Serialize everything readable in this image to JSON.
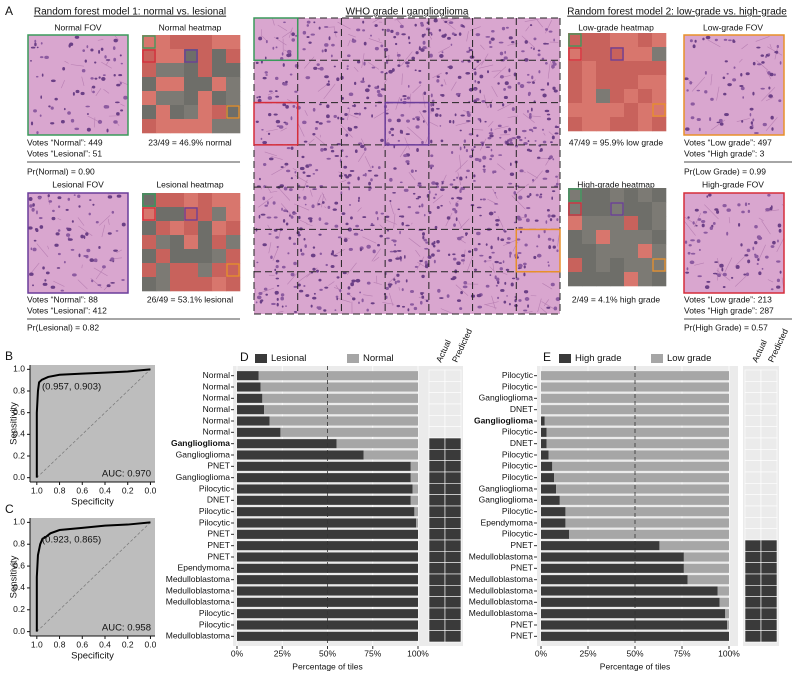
{
  "panel_a": {
    "label": "A",
    "model1": {
      "title": "Random forest model 1: normal vs. lesional",
      "normal": {
        "fov_title": "Normal FOV",
        "heatmap_title": "Normal heatmap",
        "votes": [
          "Votes “Normal”: 449",
          "Votes “Lesional”: 51"
        ],
        "tile_summary": "23/49 = 46.9% normal",
        "probability": "Pr(Normal) = 0.90"
      },
      "lesional": {
        "fov_title": "Lesional FOV",
        "heatmap_title": "Lesional heatmap",
        "votes": [
          "Votes “Normal”: 88",
          "Votes “Lesional”: 412"
        ],
        "tile_summary": "26/49 = 53.1% lesional",
        "probability": "Pr(Lesional) = 0.82"
      }
    },
    "center_title": "WHO grade I ganglioglioma",
    "model2": {
      "title": "Random forest model 2: low-grade vs. high-grade",
      "low": {
        "heatmap_title": "Low-grade heatmap",
        "fov_title": "Low-grade FOV",
        "tile_summary": "47/49 = 95.9% low grade",
        "votes": [
          "Votes “Low grade”: 497",
          "Votes “High grade”: 3"
        ],
        "probability": "Pr(Low Grade) = 0.99"
      },
      "high": {
        "heatmap_title": "High-grade heatmap",
        "fov_title": "High-grade FOV",
        "tile_summary": "2/49 = 4.1% high grade",
        "votes": [
          "Votes “Low grade”: 213",
          "Votes “High grade”: 287"
        ],
        "probability": "Pr(High Grade) = 0.57"
      }
    }
  },
  "chart_data": [
    {
      "type": "line",
      "panel_label": "B",
      "xlabel": "Specificity",
      "ylabel": "Sensitivity",
      "color": "#000000",
      "background": "#bdbdbd",
      "x": [
        1.0,
        1.0,
        0.99,
        0.98,
        0.96,
        0.957,
        0.9,
        0.8,
        0.6,
        0.4,
        0.2,
        0.0
      ],
      "values": [
        0,
        0.6,
        0.8,
        0.88,
        0.9,
        0.903,
        0.93,
        0.95,
        0.96,
        0.97,
        0.98,
        1.0
      ],
      "xlim": [
        1.06,
        -0.04
      ],
      "ylim": [
        -0.04,
        1.04
      ],
      "xticks": [
        {
          "value": 1,
          "label": "1.0"
        },
        0.8,
        0.6,
        0.4,
        0.2,
        {
          "value": 0,
          "label": "0.0"
        }
      ],
      "yticks": [
        {
          "value": 0,
          "label": "0.0"
        },
        0.2,
        0.4,
        0.6,
        0.8,
        {
          "value": 1,
          "label": "1.0"
        }
      ],
      "annotation": "(0.957, 0.903)",
      "auc_label": "AUC: 0.970"
    },
    {
      "type": "line",
      "panel_label": "C",
      "xlabel": "Specificity",
      "ylabel": "Sensitivity",
      "color": "#000000",
      "background": "#bdbdbd",
      "x": [
        1.0,
        1.0,
        0.99,
        0.97,
        0.95,
        0.923,
        0.88,
        0.8,
        0.6,
        0.4,
        0.2,
        0.0
      ],
      "values": [
        0,
        0.5,
        0.7,
        0.8,
        0.85,
        0.865,
        0.9,
        0.93,
        0.95,
        0.97,
        0.98,
        1.0
      ],
      "xlim": [
        1.06,
        -0.04
      ],
      "ylim": [
        -0.04,
        1.04
      ],
      "xticks": [
        {
          "value": 1,
          "label": "1.0"
        },
        0.8,
        0.6,
        0.4,
        0.2,
        {
          "value": 0,
          "label": "0.0"
        }
      ],
      "yticks": [
        {
          "value": 0,
          "label": "0.0"
        },
        0.2,
        0.4,
        0.6,
        0.8,
        {
          "value": 1,
          "label": "1.0"
        }
      ],
      "annotation": "(0.923, 0.865)",
      "auc_label": "AUC: 0.958"
    },
    {
      "type": "bar",
      "panel_label": "D",
      "orientation": "horizontal",
      "stacked": true,
      "legend": "top",
      "background": "#ebebeb",
      "categories": [
        "Normal",
        "Normal",
        "Normal",
        "Normal",
        "Normal",
        "Normal",
        "Ganglioglioma",
        "Ganglioglioma",
        "PNET",
        "Ganglioglioma",
        "Pilocytic",
        "DNET",
        "Pilocytic",
        "Pilocytic",
        "PNET",
        "PNET",
        "PNET",
        "Ependymoma",
        "Medulloblastoma",
        "Medulloblastoma",
        "Medulloblastoma",
        "Pilocytic",
        "Pilocytic",
        "Medulloblastoma"
      ],
      "bold_category": 6,
      "series": [
        {
          "name": "Lesional",
          "color": "#3a3a3a",
          "values": [
            12,
            13,
            14,
            15,
            18,
            24,
            55,
            70,
            96,
            96,
            97,
            96,
            98,
            99,
            100,
            100,
            100,
            100,
            100,
            100,
            100,
            100,
            100,
            100
          ]
        },
        {
          "name": "Normal",
          "color": "#a6a6a6",
          "values": [
            88,
            87,
            86,
            85,
            82,
            76,
            45,
            30,
            4,
            4,
            3,
            4,
            2,
            1,
            0,
            0,
            0,
            0,
            0,
            0,
            0,
            0,
            0,
            0
          ]
        }
      ],
      "xlim": [
        0,
        100
      ],
      "xticks": [
        {
          "value": 0,
          "label": "0%"
        },
        {
          "value": 25,
          "label": "25%"
        },
        {
          "value": 50,
          "label": "50%"
        },
        {
          "value": 75,
          "label": "75%"
        },
        {
          "value": 100,
          "label": "100%"
        }
      ],
      "vline": 50,
      "xlabel": "Percentage of tiles",
      "status_columns": [
        "Actual",
        "Predicted"
      ],
      "actual": [
        "Normal",
        "Normal",
        "Normal",
        "Normal",
        "Normal",
        "Normal",
        "Lesional",
        "Lesional",
        "Lesional",
        "Lesional",
        "Lesional",
        "Lesional",
        "Lesional",
        "Lesional",
        "Lesional",
        "Lesional",
        "Lesional",
        "Lesional",
        "Lesional",
        "Lesional",
        "Lesional",
        "Lesional",
        "Lesional",
        "Lesional"
      ],
      "predicted": [
        "Normal",
        "Normal",
        "Normal",
        "Normal",
        "Normal",
        "Normal",
        "Lesional",
        "Lesional",
        "Lesional",
        "Lesional",
        "Lesional",
        "Lesional",
        "Lesional",
        "Lesional",
        "Lesional",
        "Lesional",
        "Lesional",
        "Lesional",
        "Lesional",
        "Lesional",
        "Lesional",
        "Lesional",
        "Lesional",
        "Lesional"
      ]
    },
    {
      "type": "bar",
      "panel_label": "E",
      "orientation": "horizontal",
      "stacked": true,
      "legend": "top",
      "background": "#ebebeb",
      "categories": [
        "Pilocytic",
        "Pilocytic",
        "Ganglioglioma",
        "DNET",
        "Ganglioglioma",
        "Pilocytic",
        "DNET",
        "Pilocytic",
        "Pilocytic",
        "Pilocytic",
        "Ganglioglioma",
        "Ganglioglioma",
        "Pilocytic",
        "Ependymoma",
        "Pilocytic",
        "PNET",
        "Medulloblastoma",
        "PNET",
        "Medulloblastoma",
        "Medulloblastoma",
        "Medulloblastoma",
        "Medulloblastoma",
        "PNET",
        "PNET"
      ],
      "bold_category": 4,
      "series": [
        {
          "name": "High grade",
          "color": "#3a3a3a",
          "values": [
            0,
            0,
            0,
            0,
            2,
            3,
            3,
            4,
            6,
            7,
            8,
            10,
            13,
            13,
            15,
            63,
            76,
            76,
            78,
            94,
            95,
            98,
            99,
            100
          ]
        },
        {
          "name": "Low grade",
          "color": "#a6a6a6",
          "values": [
            100,
            100,
            100,
            100,
            98,
            97,
            97,
            96,
            94,
            93,
            92,
            90,
            87,
            87,
            85,
            37,
            24,
            24,
            22,
            6,
            5,
            2,
            1,
            0
          ]
        }
      ],
      "xlim": [
        0,
        100
      ],
      "xticks": [
        {
          "value": 0,
          "label": "0%"
        },
        {
          "value": 25,
          "label": "25%"
        },
        {
          "value": 50,
          "label": "50%"
        },
        {
          "value": 75,
          "label": "75%"
        },
        {
          "value": 100,
          "label": "100%"
        }
      ],
      "vline": 50,
      "xlabel": "Percentage of tiles",
      "status_columns": [
        "Actual",
        "Predicted"
      ],
      "actual": [
        "Low grade",
        "Low grade",
        "Low grade",
        "Low grade",
        "Low grade",
        "Low grade",
        "Low grade",
        "Low grade",
        "Low grade",
        "Low grade",
        "Low grade",
        "Low grade",
        "Low grade",
        "Low grade",
        "Low grade",
        "High grade",
        "High grade",
        "High grade",
        "High grade",
        "High grade",
        "High grade",
        "High grade",
        "High grade",
        "High grade"
      ],
      "predicted": [
        "Low grade",
        "Low grade",
        "Low grade",
        "Low grade",
        "Low grade",
        "Low grade",
        "Low grade",
        "Low grade",
        "Low grade",
        "Low grade",
        "Low grade",
        "Low grade",
        "Low grade",
        "Low grade",
        "Low grade",
        "High grade",
        "High grade",
        "High grade",
        "High grade",
        "High grade",
        "High grade",
        "High grade",
        "High grade",
        "High grade"
      ]
    }
  ]
}
